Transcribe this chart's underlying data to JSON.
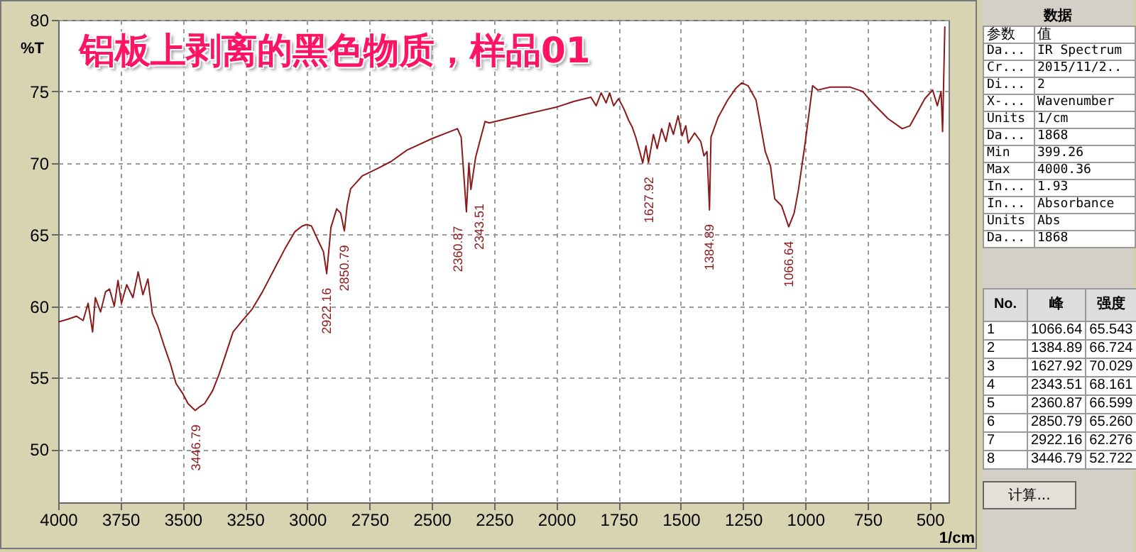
{
  "chart_data": {
    "type": "line",
    "title": "铝板上剥离的黑色物质，样品01",
    "xlabel": "1/cm",
    "ylabel": "%T",
    "xlim": [
      4000,
      425
    ],
    "ylim": [
      46.3,
      80
    ],
    "xticks": [
      4000,
      3750,
      3500,
      3250,
      3000,
      2750,
      2500,
      2250,
      2000,
      1750,
      1500,
      1250,
      1000,
      750,
      500
    ],
    "yticks": [
      50,
      55,
      60,
      65,
      70,
      75,
      80
    ],
    "grid": true,
    "series": [
      {
        "color": "#8b1a1a",
        "x": [
          4000,
          3960,
          3927,
          3900,
          3880,
          3862,
          3851,
          3830,
          3810,
          3794,
          3775,
          3760,
          3746,
          3725,
          3700,
          3679,
          3660,
          3640,
          3622,
          3600,
          3574,
          3550,
          3527,
          3500,
          3479,
          3450,
          3430,
          3412,
          3380,
          3355,
          3330,
          3298,
          3260,
          3221,
          3180,
          3126,
          3090,
          3050,
          3020,
          3002,
          2983,
          2954,
          2935,
          2922,
          2905,
          2882,
          2866,
          2851,
          2840,
          2826,
          2779,
          2720,
          2664,
          2600,
          2500,
          2397,
          2382,
          2361,
          2351,
          2343,
          2324,
          2300,
          2286,
          2269,
          2150,
          2000,
          1930,
          1861,
          1840,
          1820,
          1800,
          1786,
          1770,
          1750,
          1729,
          1710,
          1695,
          1681,
          1665,
          1653,
          1640,
          1630,
          1610,
          1595,
          1577,
          1560,
          1545,
          1530,
          1511,
          1495,
          1480,
          1470,
          1445,
          1420,
          1407,
          1395,
          1384.89,
          1379,
          1350,
          1312,
          1280,
          1255,
          1230,
          1198,
          1161,
          1140,
          1123,
          1095,
          1066.64,
          1045,
          1028,
          1000,
          971,
          950,
          900,
          820,
          770,
          725,
          668,
          611,
          580,
          555,
          520,
          489,
          470,
          455,
          449,
          440
        ],
        "values": [
          58.9,
          59.1,
          59.3,
          59.0,
          60.2,
          58.2,
          60.6,
          59.6,
          61.0,
          61.2,
          60.0,
          61.8,
          60.2,
          61.5,
          60.6,
          62.4,
          60.8,
          61.9,
          59.5,
          58.6,
          57.2,
          56.0,
          54.6,
          53.9,
          53.2,
          52.722,
          53.0,
          53.2,
          54.1,
          55.2,
          56.5,
          58.2,
          59.0,
          59.8,
          61.0,
          62.8,
          64.0,
          65.2,
          65.6,
          65.7,
          65.6,
          64.5,
          63.8,
          62.276,
          65.5,
          66.8,
          66.5,
          65.26,
          67.0,
          68.2,
          69.1,
          69.6,
          70.1,
          70.9,
          71.7,
          72.4,
          71.8,
          66.599,
          70.0,
          68.161,
          70.4,
          72.0,
          72.9,
          72.8,
          73.3,
          73.9,
          74.3,
          74.6,
          74.0,
          74.9,
          74.2,
          74.9,
          74.0,
          74.5,
          73.8,
          73.0,
          72.5,
          71.8,
          70.8,
          70.0,
          71.2,
          70.029,
          72.0,
          71.0,
          72.4,
          71.5,
          72.8,
          72.0,
          73.3,
          71.9,
          72.6,
          71.4,
          72.1,
          71.5,
          70.5,
          70.8,
          66.724,
          71.8,
          73.2,
          74.4,
          75.2,
          75.6,
          75.4,
          74.4,
          70.8,
          69.8,
          67.5,
          67.0,
          65.543,
          66.5,
          68.1,
          71.5,
          75.4,
          75.1,
          75.3,
          75.3,
          75.0,
          74.1,
          73.1,
          72.4,
          72.6,
          73.4,
          74.5,
          75.1,
          74.0,
          75.0,
          72.2,
          79.5
        ]
      }
    ],
    "annotations": [
      {
        "text": "1066.64",
        "x": 1066.64,
        "y": 65.543
      },
      {
        "text": "1384.89",
        "x": 1384.89,
        "y": 66.724
      },
      {
        "text": "1627.92",
        "x": 1627.92,
        "y": 70.029
      },
      {
        "text": "2343.51",
        "x": 2343.51,
        "y": 68.161
      },
      {
        "text": "2360.87",
        "x": 2360.87,
        "y": 66.599
      },
      {
        "text": "2850.79",
        "x": 2850.79,
        "y": 65.26
      },
      {
        "text": "2922.16",
        "x": 2922.16,
        "y": 62.276
      },
      {
        "text": "3446.79",
        "x": 3446.79,
        "y": 52.722
      },
      "数据",
      "参数",
      "值",
      "Da...",
      "IR Spectrum",
      "Cr...",
      "2015/11/2..",
      "Di...",
      "2",
      "X-...",
      "Wavenumber",
      "Units",
      "1/cm",
      "Da...",
      "1868",
      "Min",
      "399.26",
      "Max",
      "4000.36",
      "In...",
      "1.93",
      "In...",
      "Absorbance",
      "Units",
      "Abs",
      "Da...",
      "1868",
      "No.",
      "峰",
      "强度",
      "1",
      "1066.64",
      "65.543",
      "2",
      "1384.89",
      "66.724",
      "3",
      "1627.92",
      "70.029",
      "4",
      "2343.51",
      "68.161",
      "5",
      "2360.87",
      "66.599",
      "6",
      "2850.79",
      "65.260",
      "7",
      "2922.16",
      "62.276",
      "8",
      "3446.79",
      "52.722",
      "计算..."
    ]
  }
}
